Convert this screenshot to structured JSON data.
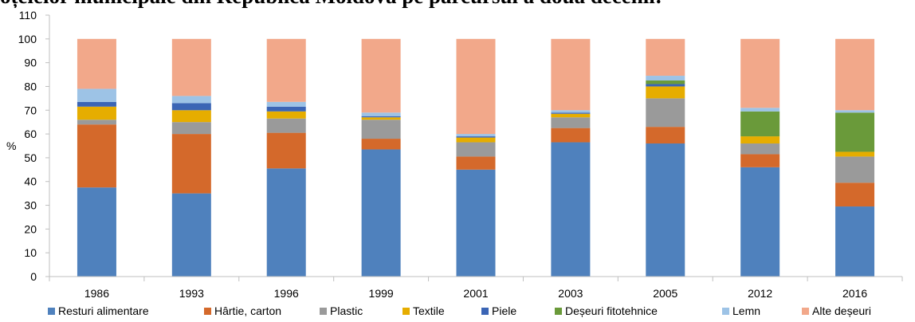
{
  "title": "oțelelor municipale din Republica Moldova pe parcursul a două decenii:",
  "chart_data": {
    "type": "bar",
    "stacked": true,
    "ylabel": "%",
    "ylim": [
      0,
      110
    ],
    "yticks": [
      0,
      10,
      20,
      30,
      40,
      50,
      60,
      70,
      80,
      90,
      100,
      110
    ],
    "grid": false,
    "legend_position": "bottom",
    "categories": [
      "1986",
      "1993",
      "1996",
      "1999",
      "2001",
      "2003",
      "2005",
      "2012",
      "2016"
    ],
    "series": [
      {
        "name": "Resturi alimentare",
        "color": "#4f81bd",
        "values": [
          37.5,
          35,
          45.5,
          53.5,
          45,
          56.5,
          56,
          46,
          29.5
        ]
      },
      {
        "name": "Hârtie, carton",
        "color": "#d4692b",
        "values": [
          26.5,
          25,
          15,
          4.5,
          5.5,
          6,
          7,
          5.5,
          10
        ]
      },
      {
        "name": "Plastic",
        "color": "#9a9a9a",
        "values": [
          2,
          5,
          6,
          8,
          6,
          4.5,
          12,
          4.5,
          11
        ]
      },
      {
        "name": "Textile",
        "color": "#e6ad00",
        "values": [
          5.5,
          5,
          3,
          1,
          2,
          1.5,
          5,
          3,
          2
        ]
      },
      {
        "name": "Piele",
        "color": "#3b65b5",
        "values": [
          2,
          3,
          2,
          0.5,
          0.5,
          0.5,
          1,
          0,
          0
        ]
      },
      {
        "name": "Deșeuri fitotehnice",
        "color": "#6a9a3a",
        "values": [
          0,
          0,
          0,
          0,
          0,
          0,
          1.5,
          10.5,
          16.5
        ]
      },
      {
        "name": "Lemn",
        "color": "#9dc3e6",
        "values": [
          5.5,
          3,
          2,
          1.5,
          1,
          1,
          2,
          1.5,
          1
        ]
      },
      {
        "name": "Alte deșeuri",
        "color": "#f2a88a",
        "values": [
          21,
          24,
          26.5,
          31,
          40,
          30,
          15.5,
          29,
          30
        ]
      }
    ]
  }
}
